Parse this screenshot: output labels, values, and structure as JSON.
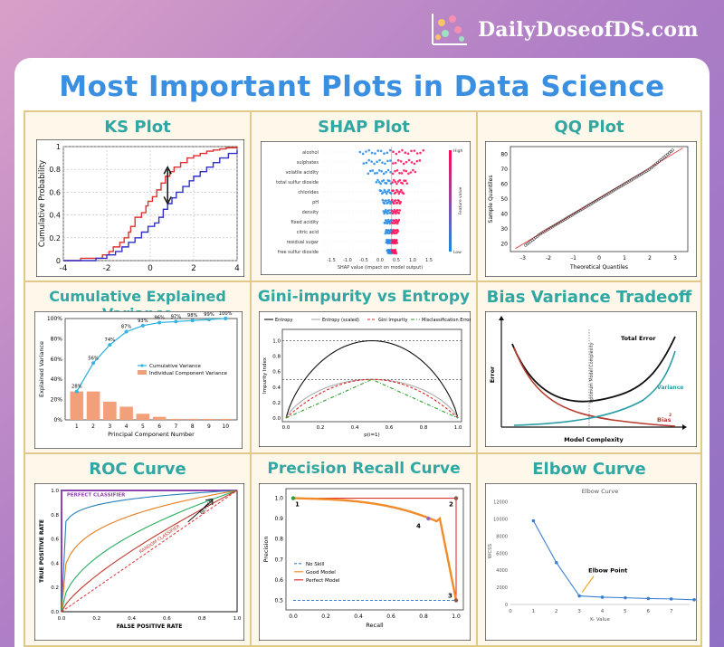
{
  "brand": {
    "name": "DailyDoseofDS.com"
  },
  "page_title": "Most Important Plots in Data Science",
  "chart_data": [
    {
      "id": "ks",
      "title": "KS Plot",
      "type": "line",
      "ylabel": "Cumulative Probability",
      "xlim": [
        -4,
        4
      ],
      "ylim": [
        0,
        1
      ],
      "x_ticks": [
        "-4",
        "-2",
        "0",
        "2",
        "4"
      ],
      "y_ticks": [
        "0",
        "0.2",
        "0.4",
        "0.6",
        "0.8",
        "1"
      ],
      "series": [
        {
          "color": "#e03030",
          "x": [
            -4,
            -3.2,
            -3.2,
            -2.2,
            -1.9,
            -1.7,
            -1.4,
            -1.2,
            -1.0,
            -0.9,
            -0.7,
            -0.4,
            -0.2,
            -0.1,
            0.1,
            0.3,
            0.5,
            0.7,
            0.9,
            1.1,
            1.4,
            1.7,
            2.0,
            2.3,
            2.6,
            2.9,
            3.2,
            3.5,
            4
          ],
          "y": [
            0,
            0,
            0.02,
            0.05,
            0.08,
            0.12,
            0.16,
            0.2,
            0.25,
            0.3,
            0.38,
            0.42,
            0.48,
            0.52,
            0.56,
            0.62,
            0.68,
            0.74,
            0.78,
            0.82,
            0.86,
            0.9,
            0.92,
            0.94,
            0.96,
            0.97,
            0.98,
            0.99,
            1.0
          ]
        },
        {
          "color": "#3030c8",
          "x": [
            -4,
            -2.5,
            -2.0,
            -1.6,
            -1.3,
            -1.0,
            -0.7,
            -0.4,
            -0.1,
            0.2,
            0.4,
            0.6,
            0.8,
            1.0,
            1.2,
            1.5,
            1.8,
            2.0,
            2.3,
            2.6,
            2.9,
            3.2,
            3.6,
            4
          ],
          "y": [
            0,
            0.02,
            0.05,
            0.08,
            0.12,
            0.16,
            0.2,
            0.25,
            0.3,
            0.33,
            0.38,
            0.45,
            0.5,
            0.55,
            0.6,
            0.65,
            0.7,
            0.74,
            0.78,
            0.82,
            0.86,
            0.9,
            0.94,
            0.97
          ]
        }
      ]
    },
    {
      "id": "shap",
      "title": "SHAP Plot",
      "type": "scatter",
      "features": [
        "alcohol",
        "sulphates",
        "volatile acidity",
        "total sulfur dioxide",
        "chlorides",
        "pH",
        "density",
        "fixed acidity",
        "citric acid",
        "residual sugar",
        "free sulfur dioxide"
      ],
      "xlabel": "SHAP value (impact on model output)",
      "x_ticks": [
        "-1.5",
        "-1.0",
        "-0.5",
        "0.0",
        "0.5",
        "1.0",
        "1.5"
      ],
      "colorbar_label": "Feature value",
      "colorbar_high": "High",
      "colorbar_low": "Low"
    },
    {
      "id": "qq",
      "title": "QQ Plot",
      "type": "scatter",
      "xlabel": "Theoretical Quantiles",
      "ylabel": "Sample Quantiles",
      "xlim": [
        -3.5,
        3.5
      ],
      "ylim": [
        15,
        85
      ],
      "x_ticks": [
        "-3",
        "-2",
        "-1",
        "0",
        "1",
        "2",
        "3"
      ],
      "y_ticks": [
        "20",
        "30",
        "40",
        "50",
        "60",
        "70",
        "80"
      ]
    },
    {
      "id": "cev",
      "title": "Cumulative Explained Variance",
      "type": "bar",
      "categories": [
        "1",
        "2",
        "3",
        "4",
        "5",
        "6",
        "7",
        "8",
        "9",
        "10"
      ],
      "xlabel": "Principal Component Number",
      "ylabel": "Explained Variance",
      "y_ticks": [
        "0%",
        "20%",
        "40%",
        "60%",
        "80%",
        "100%"
      ],
      "series": [
        {
          "name": "Cumulative Variance",
          "color": "#35b4e0",
          "values": [
            28,
            56,
            74,
            87,
            93,
            96,
            97,
            98,
            99,
            100
          ],
          "labels": [
            "28%",
            "56%",
            "74%",
            "87%",
            "93%",
            "96%",
            "97%",
            "98%",
            "99%",
            "100%"
          ]
        },
        {
          "name": "Individual Component Variance",
          "color": "#f2a07a",
          "values": [
            28,
            28,
            18,
            13,
            6,
            3,
            1,
            1,
            1,
            1
          ]
        }
      ]
    },
    {
      "id": "gini",
      "title": "Gini-impurity vs Entropy",
      "type": "line",
      "xlabel": "p(i=1)",
      "ylabel": "Impurity Index",
      "x_ticks": [
        "0.0",
        "0.2",
        "0.4",
        "0.6",
        "0.8",
        "1.0"
      ],
      "y_ticks": [
        "0.0",
        "0.2",
        "0.4",
        "0.6",
        "0.8",
        "1.0"
      ],
      "legend": [
        "Entropy",
        "Entropy (scaled)",
        "Gini Impurity",
        "Misclassification Error"
      ]
    },
    {
      "id": "biasvar",
      "title": "Bias Variance Tradeoff",
      "type": "line",
      "xlabel": "Model Complexity",
      "ylabel": "Error",
      "annotations": [
        "Total Error",
        "Variance",
        "Bias",
        "2",
        "Optimum Model Complexity"
      ]
    },
    {
      "id": "roc",
      "title": "ROC Curve",
      "type": "line",
      "xlabel": "FALSE POSITIVE RATE",
      "ylabel": "TRUE POSITIVE RATE",
      "x_ticks": [
        "0.0",
        "0.2",
        "0.4",
        "0.6",
        "0.8",
        "1.0"
      ],
      "y_ticks": [
        "0.0",
        "0.2",
        "0.4",
        "0.6",
        "0.8",
        "1.0"
      ],
      "annotations": [
        "PERFECT CLASSIFIER",
        "RANDOM CLASSIFIER",
        "BETTER"
      ]
    },
    {
      "id": "pr",
      "title": "Precision Recall Curve",
      "type": "line",
      "xlabel": "Recall",
      "ylabel": "Precision",
      "x_ticks": [
        "0.0",
        "0.2",
        "0.4",
        "0.6",
        "0.8",
        "1.0"
      ],
      "y_ticks": [
        "0.5",
        "0.6",
        "0.7",
        "0.8",
        "0.9",
        "1.0"
      ],
      "legend": [
        "No Skill",
        "Good Model",
        "Perfect Model"
      ],
      "point_labels": [
        "1",
        "2",
        "3",
        "4"
      ]
    },
    {
      "id": "elbow",
      "title": "Elbow Curve",
      "type": "line",
      "plot_title": "Elbow Curve",
      "xlabel": "K- Value",
      "ylabel": "WCSS",
      "x": [
        1,
        2,
        3,
        4,
        5,
        6,
        7,
        8
      ],
      "values": [
        9800,
        4900,
        1000,
        850,
        780,
        700,
        650,
        550
      ],
      "x_ticks": [
        "0",
        "1",
        "2",
        "3",
        "4",
        "5",
        "6",
        "7"
      ],
      "y_ticks": [
        "0",
        "2000",
        "4000",
        "6000",
        "8000",
        "10000",
        "12000"
      ],
      "annotation": "Elbow Point"
    }
  ]
}
